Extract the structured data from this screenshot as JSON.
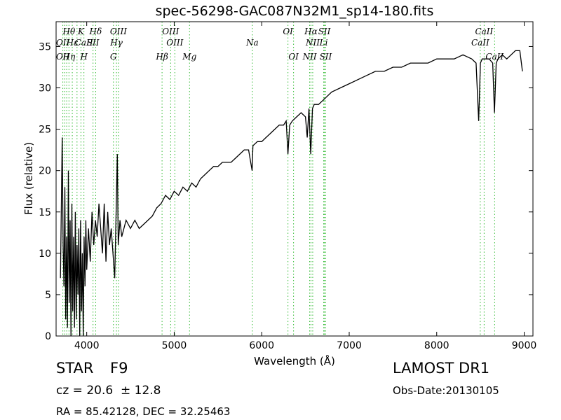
{
  "title": "spec-56298-GAC087N32M1_sp14-180.fits",
  "info": {
    "object_type": "STAR",
    "subclass": "F9",
    "survey": "LAMOST DR1",
    "redshift": "cz = 20.6  ± 12.8",
    "obs_date": "Obs-Date:20130105",
    "coords": "RA = 85.42128, DEC = 32.25463"
  },
  "chart_data": {
    "type": "line",
    "xlabel": "Wavelength (Å)",
    "ylabel": "Flux (relative)",
    "xlim": [
      3650,
      9100
    ],
    "ylim": [
      0,
      38
    ],
    "xticks": [
      4000,
      5000,
      6000,
      7000,
      8000,
      9000
    ],
    "yticks": [
      0,
      5,
      10,
      15,
      20,
      25,
      30,
      35
    ],
    "line_color": "#000000",
    "marker_color": "#33bb33",
    "series": [
      {
        "x": [
          3700,
          3720,
          3730,
          3740,
          3750,
          3760,
          3770,
          3780,
          3790,
          3800,
          3810,
          3820,
          3830,
          3840,
          3850,
          3860,
          3870,
          3880,
          3890,
          3900,
          3910,
          3920,
          3930,
          3940,
          3950,
          3960,
          3970,
          3980,
          3990,
          4000,
          4020,
          4040,
          4060,
          4080,
          4100,
          4120,
          4140,
          4160,
          4180,
          4200,
          4220,
          4240,
          4260,
          4280,
          4300,
          4320,
          4340,
          4350,
          4360,
          4380,
          4400,
          4450,
          4500,
          4550,
          4600,
          4650,
          4700,
          4750,
          4800,
          4850,
          4900,
          4950,
          5000,
          5050,
          5100,
          5150,
          5200,
          5250,
          5300,
          5350,
          5400,
          5450,
          5500,
          5550,
          5600,
          5650,
          5700,
          5750,
          5800,
          5850,
          5890,
          5900,
          5950,
          6000,
          6050,
          6100,
          6150,
          6200,
          6250,
          6280,
          6300,
          6320,
          6350,
          6400,
          6450,
          6500,
          6520,
          6540,
          6560,
          6580,
          6600,
          6650,
          6700,
          6750,
          6800,
          6900,
          7000,
          7100,
          7200,
          7300,
          7400,
          7500,
          7600,
          7700,
          7800,
          7900,
          8000,
          8100,
          8200,
          8300,
          8400,
          8450,
          8480,
          8500,
          8520,
          8540,
          8560,
          8600,
          8640,
          8660,
          8680,
          8700,
          8750,
          8800,
          8850,
          8900,
          8950,
          8980
        ],
        "y": [
          7,
          24,
          11,
          6,
          18,
          2,
          12,
          1,
          20,
          4,
          14,
          0,
          16,
          3,
          12,
          1,
          15,
          2,
          11,
          5,
          13,
          0,
          14,
          3,
          10,
          0,
          12,
          6,
          14,
          8,
          13,
          9,
          15,
          11,
          14,
          12,
          16,
          13,
          10,
          16,
          9,
          15,
          11,
          13,
          10,
          7,
          17,
          22,
          11,
          14,
          12,
          14,
          13,
          14,
          13,
          13.5,
          14,
          14.5,
          15.5,
          16,
          17,
          16.5,
          17.5,
          17,
          18,
          17.5,
          18.5,
          18,
          19,
          19.5,
          20,
          20.5,
          20.5,
          21,
          21,
          21,
          21.5,
          22,
          22.5,
          22.5,
          20,
          23,
          23.5,
          23.5,
          24,
          24.5,
          25,
          25.5,
          25.5,
          26,
          22,
          25.5,
          26,
          26.5,
          27,
          26.5,
          24,
          27.5,
          22,
          27.5,
          28,
          28,
          28.5,
          29,
          29.5,
          30,
          30.5,
          31,
          31.5,
          32,
          32,
          32.5,
          32.5,
          33,
          33,
          33,
          33.5,
          33.5,
          33.5,
          34,
          33.5,
          33,
          26,
          33,
          33.5,
          33.5,
          33.5,
          33.5,
          33,
          27,
          33,
          33.5,
          34,
          33.5,
          34,
          34.5,
          34.5,
          32
        ]
      }
    ],
    "line_labels": [
      {
        "text": "Hθ",
        "x": 3797,
        "row": 1
      },
      {
        "text": "K",
        "x": 3934,
        "row": 1
      },
      {
        "text": "Hδ",
        "x": 4102,
        "row": 1
      },
      {
        "text": "OIII",
        "x": 4363,
        "row": 1
      },
      {
        "text": "OIII",
        "x": 4959,
        "row": 1
      },
      {
        "text": "OI",
        "x": 6300,
        "row": 1
      },
      {
        "text": "Hα",
        "x": 6563,
        "row": 1
      },
      {
        "text": "SII",
        "x": 6716,
        "row": 1
      },
      {
        "text": "CaII",
        "x": 8542,
        "row": 1
      },
      {
        "text": "OII",
        "x": 3727,
        "row": 2
      },
      {
        "text": "Hε",
        "x": 3835,
        "row": 2
      },
      {
        "text": "CaII",
        "x": 3968,
        "row": 2
      },
      {
        "text": "SII",
        "x": 4072,
        "row": 2
      },
      {
        "text": "Hγ",
        "x": 4340,
        "row": 2
      },
      {
        "text": "OIII",
        "x": 5007,
        "row": 2
      },
      {
        "text": "Na",
        "x": 5893,
        "row": 2
      },
      {
        "text": "NII",
        "x": 6583,
        "row": 2
      },
      {
        "text": "Li",
        "x": 6708,
        "row": 2
      },
      {
        "text": "CaII",
        "x": 8498,
        "row": 2
      },
      {
        "text": "OII",
        "x": 3727,
        "row": 3
      },
      {
        "text": "Hη",
        "x": 3797,
        "row": 3
      },
      {
        "text": "H",
        "x": 3968,
        "row": 3
      },
      {
        "text": "G",
        "x": 4305,
        "row": 3
      },
      {
        "text": "Hβ",
        "x": 4861,
        "row": 3
      },
      {
        "text": "Mg",
        "x": 5175,
        "row": 3
      },
      {
        "text": "OI",
        "x": 6364,
        "row": 3
      },
      {
        "text": "NII",
        "x": 6548,
        "row": 3
      },
      {
        "text": "SII",
        "x": 6731,
        "row": 3
      },
      {
        "text": "CaII",
        "x": 8662,
        "row": 3
      }
    ],
    "marker_lines": [
      3727,
      3750,
      3771,
      3797,
      3835,
      3889,
      3934,
      3968,
      4072,
      4102,
      4305,
      4340,
      4363,
      4861,
      4959,
      5007,
      5175,
      5893,
      6300,
      6364,
      6548,
      6563,
      6583,
      6708,
      6716,
      6731,
      8498,
      8542,
      8662
    ]
  }
}
